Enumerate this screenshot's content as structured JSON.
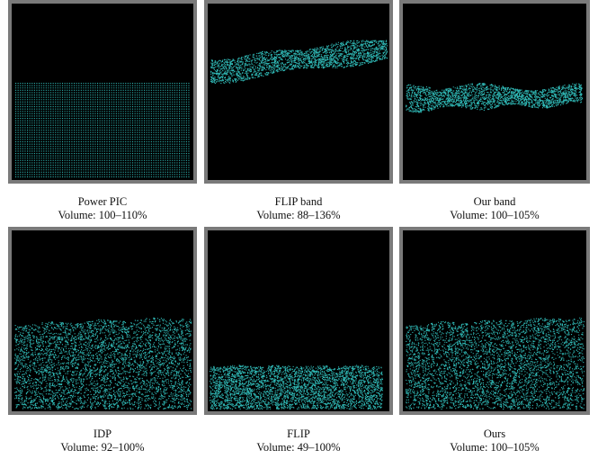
{
  "particle_color": "#2fb7b4",
  "frame_color": "#7a7a7a",
  "panels": [
    {
      "name": "Power PIC",
      "volume": "Volume: 100–110%",
      "fluid": "block"
    },
    {
      "name": "FLIP band",
      "volume": "Volume: 88–136%",
      "fluid": "band-high"
    },
    {
      "name": "Our band",
      "volume": "Volume: 100–105%",
      "fluid": "band-mid"
    },
    {
      "name": "IDP",
      "volume": "Volume: 92–100%",
      "fluid": "wavy-high"
    },
    {
      "name": "FLIP",
      "volume": "Volume: 49–100%",
      "fluid": "low-block"
    },
    {
      "name": "Ours",
      "volume": "Volume: 100–105%",
      "fluid": "wavy-high"
    }
  ]
}
